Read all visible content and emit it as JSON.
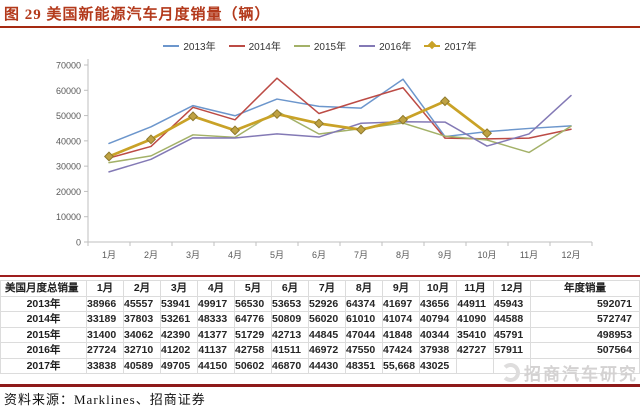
{
  "title": "图 29 美国新能源汽车月度销量（辆）",
  "source_note": "资料来源：Marklines、招商证券",
  "watermark": "招商汽车研究",
  "accent_colors": {
    "title_red": "#B3391B",
    "rule_red": "#9E1E1E",
    "axis_gray": "#BFBFBF",
    "grid_gray": "#DCDCDC"
  },
  "chart_data": {
    "type": "line",
    "title": "美国新能源汽车月度销量（辆）",
    "x": [
      "1月",
      "2月",
      "3月",
      "4月",
      "5月",
      "6月",
      "7月",
      "8月",
      "9月",
      "10月",
      "11月",
      "12月"
    ],
    "xlabel": "",
    "ylabel": "",
    "ylim": [
      0,
      70000
    ],
    "ytick_step": 10000,
    "grid": false,
    "legend_position": "top",
    "series": [
      {
        "name": "2013年",
        "color": "#6C96CC",
        "values": [
          38966,
          45557,
          53941,
          49917,
          56530,
          53653,
          52926,
          64374,
          41697,
          43656,
          44911,
          45943
        ]
      },
      {
        "name": "2014年",
        "color": "#BC4B45",
        "values": [
          33189,
          37803,
          53261,
          48333,
          64776,
          50809,
          56020,
          61010,
          41074,
          40794,
          41090,
          44588
        ]
      },
      {
        "name": "2015年",
        "color": "#A3B168",
        "values": [
          31400,
          34062,
          42390,
          41377,
          51729,
          42713,
          44845,
          47044,
          41848,
          40344,
          35410,
          45791
        ]
      },
      {
        "name": "2016年",
        "color": "#8379B5",
        "values": [
          27724,
          32710,
          41202,
          41137,
          42758,
          41511,
          46972,
          47550,
          47424,
          37938,
          42727,
          57911
        ]
      },
      {
        "name": "2017年",
        "color": "#C9A227",
        "marker": "diamond",
        "emphasis": true,
        "values": [
          33838,
          40589,
          49705,
          44150,
          50602,
          46870,
          44430,
          48351,
          55668,
          43025
        ]
      }
    ]
  },
  "table": {
    "header": [
      "美国月度总销量",
      "1月",
      "2月",
      "3月",
      "4月",
      "5月",
      "6月",
      "7月",
      "8月",
      "9月",
      "10月",
      "11月",
      "12月",
      "年度销量"
    ],
    "rows": [
      {
        "label": "2013年",
        "cells": [
          "38966",
          "45557",
          "53941",
          "49917",
          "56530",
          "53653",
          "52926",
          "64374",
          "41697",
          "43656",
          "44911",
          "45943",
          "592071"
        ]
      },
      {
        "label": "2014年",
        "cells": [
          "33189",
          "37803",
          "53261",
          "48333",
          "64776",
          "50809",
          "56020",
          "61010",
          "41074",
          "40794",
          "41090",
          "44588",
          "572747"
        ]
      },
      {
        "label": "2015年",
        "cells": [
          "31400",
          "34062",
          "42390",
          "41377",
          "51729",
          "42713",
          "44845",
          "47044",
          "41848",
          "40344",
          "35410",
          "45791",
          "498953"
        ]
      },
      {
        "label": "2016年",
        "cells": [
          "27724",
          "32710",
          "41202",
          "41137",
          "42758",
          "41511",
          "46972",
          "47550",
          "47424",
          "37938",
          "42727",
          "57911",
          "507564"
        ]
      },
      {
        "label": "2017年",
        "cells": [
          "33838",
          "40589",
          "49705",
          "44150",
          "50602",
          "46870",
          "44430",
          "48351",
          "55,668",
          "43025",
          "",
          "",
          ""
        ]
      }
    ]
  }
}
